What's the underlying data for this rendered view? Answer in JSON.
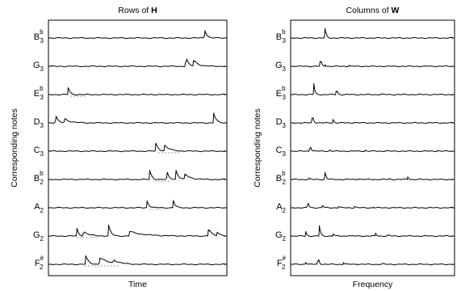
{
  "chart_data": [
    {
      "type": "line",
      "title_plain": "Rows of ",
      "title_bold": "H",
      "xlabel": "Time",
      "ylabel": "Corresponding notes",
      "rows": [
        {
          "note": "B",
          "sup": "b",
          "sub": "3",
          "dotted": [],
          "peaks": [
            {
              "x": 0.88,
              "h": 14,
              "w": 0.012
            }
          ]
        },
        {
          "note": "G",
          "sup": "",
          "sub": "3",
          "dotted": [],
          "peaks": [
            {
              "x": 0.775,
              "h": 14,
              "w": 0.012
            },
            {
              "x": 0.82,
              "h": 8,
              "w": 0.025
            }
          ]
        },
        {
          "note": "E",
          "sup": "b",
          "sub": "3",
          "dotted": [
            [
              0.12,
              0.2
            ]
          ],
          "peaks": [
            {
              "x": 0.1,
              "h": 13,
              "w": 0.01
            }
          ]
        },
        {
          "note": "D",
          "sup": "",
          "sub": "3",
          "dotted": [],
          "peaks": [
            {
              "x": 0.03,
              "h": 12,
              "w": 0.012
            },
            {
              "x": 0.08,
              "h": 6,
              "w": 0.03
            },
            {
              "x": 0.935,
              "h": 13,
              "w": 0.012
            }
          ]
        },
        {
          "note": "C",
          "sup": "",
          "sub": "3",
          "dotted": [
            [
              0.62,
              0.74
            ]
          ],
          "peaks": [
            {
              "x": 0.6,
              "h": 13,
              "w": 0.015
            },
            {
              "x": 0.65,
              "h": 8,
              "w": 0.03
            }
          ]
        },
        {
          "note": "B",
          "sup": "b",
          "sub": "2",
          "dotted": [
            [
              0.6,
              0.68
            ]
          ],
          "peaks": [
            {
              "x": 0.57,
              "h": 13,
              "w": 0.01
            },
            {
              "x": 0.665,
              "h": 12,
              "w": 0.012
            },
            {
              "x": 0.72,
              "h": 13,
              "w": 0.012
            },
            {
              "x": 0.77,
              "h": 7,
              "w": 0.03
            }
          ]
        },
        {
          "note": "A",
          "sup": "",
          "sub": "2",
          "dotted": [
            [
              0.57,
              0.66
            ]
          ],
          "peaks": [
            {
              "x": 0.55,
              "h": 12,
              "w": 0.012
            },
            {
              "x": 0.7,
              "h": 14,
              "w": 0.01
            }
          ]
        },
        {
          "note": "G",
          "sup": "",
          "sub": "2",
          "dotted": [
            [
              0.15,
              0.28
            ]
          ],
          "peaks": [
            {
              "x": 0.15,
              "h": 14,
              "w": 0.01
            },
            {
              "x": 0.19,
              "h": 6,
              "w": 0.03
            },
            {
              "x": 0.335,
              "h": 14,
              "w": 0.012
            },
            {
              "x": 0.45,
              "h": 6,
              "w": 0.08
            },
            {
              "x": 0.905,
              "h": 11,
              "w": 0.015
            },
            {
              "x": 0.95,
              "h": 6,
              "w": 0.02
            }
          ]
        },
        {
          "note": "F",
          "sup": "#",
          "sub": "2",
          "dotted": [
            [
              0.2,
              0.4
            ]
          ],
          "peaks": [
            {
              "x": 0.2,
              "h": 14,
              "w": 0.015
            },
            {
              "x": 0.28,
              "h": 9,
              "w": 0.05
            },
            {
              "x": 0.36,
              "h": 5,
              "w": 0.03
            }
          ]
        }
      ]
    },
    {
      "type": "line",
      "title_plain": "Columns of ",
      "title_bold": "W",
      "xlabel": "Frequency",
      "ylabel": "Corresponding notes",
      "rows": [
        {
          "note": "B",
          "sup": "b",
          "sub": "3",
          "dotted": [],
          "peaks": [
            {
              "x": 0.205,
              "h": 16,
              "w": 0.006
            }
          ]
        },
        {
          "note": "G",
          "sup": "",
          "sub": "3",
          "dotted": [],
          "peaks": [
            {
              "x": 0.175,
              "h": 14,
              "w": 0.006
            },
            {
              "x": 0.2,
              "h": 5,
              "w": 0.005
            },
            {
              "x": 0.35,
              "h": 3,
              "w": 0.005
            }
          ]
        },
        {
          "note": "E",
          "sup": "b",
          "sub": "3",
          "dotted": [],
          "peaks": [
            {
              "x": 0.135,
              "h": 14,
              "w": 0.006
            },
            {
              "x": 0.275,
              "h": 11,
              "w": 0.006
            },
            {
              "x": 0.55,
              "h": 2,
              "w": 0.005
            }
          ]
        },
        {
          "note": "D",
          "sup": "",
          "sub": "3",
          "dotted": [],
          "peaks": [
            {
              "x": 0.125,
              "h": 15,
              "w": 0.006
            },
            {
              "x": 0.255,
              "h": 6,
              "w": 0.005
            },
            {
              "x": 0.38,
              "h": 2,
              "w": 0.005
            }
          ]
        },
        {
          "note": "C",
          "sup": "",
          "sub": "3",
          "dotted": [],
          "peaks": [
            {
              "x": 0.11,
              "h": 13,
              "w": 0.006
            },
            {
              "x": 0.23,
              "h": 4,
              "w": 0.005
            },
            {
              "x": 0.45,
              "h": 3,
              "w": 0.005
            },
            {
              "x": 0.58,
              "h": 2,
              "w": 0.005
            },
            {
              "x": 0.9,
              "h": 3,
              "w": 0.005
            }
          ]
        },
        {
          "note": "B",
          "sup": "b",
          "sub": "2",
          "dotted": [],
          "peaks": [
            {
              "x": 0.1,
              "h": 4,
              "w": 0.005
            },
            {
              "x": 0.205,
              "h": 12,
              "w": 0.006
            },
            {
              "x": 0.41,
              "h": 3,
              "w": 0.005
            },
            {
              "x": 0.6,
              "h": 2,
              "w": 0.005
            },
            {
              "x": 0.72,
              "h": 4,
              "w": 0.005
            }
          ]
        },
        {
          "note": "A",
          "sup": "",
          "sub": "2",
          "dotted": [],
          "peaks": [
            {
              "x": 0.095,
              "h": 13,
              "w": 0.006
            },
            {
              "x": 0.19,
              "h": 5,
              "w": 0.005
            },
            {
              "x": 0.29,
              "h": 3,
              "w": 0.005
            },
            {
              "x": 0.39,
              "h": 3,
              "w": 0.005
            },
            {
              "x": 0.5,
              "h": 2,
              "w": 0.005
            }
          ]
        },
        {
          "note": "G",
          "sup": "",
          "sub": "2",
          "dotted": [],
          "peaks": [
            {
              "x": 0.085,
              "h": 6,
              "w": 0.006
            },
            {
              "x": 0.17,
              "h": 15,
              "w": 0.006
            },
            {
              "x": 0.255,
              "h": 4,
              "w": 0.005
            },
            {
              "x": 0.345,
              "h": 3,
              "w": 0.005
            },
            {
              "x": 0.52,
              "h": 4,
              "w": 0.005
            },
            {
              "x": 0.595,
              "h": 3,
              "w": 0.005
            }
          ]
        },
        {
          "note": "F",
          "sup": "#",
          "sub": "2",
          "dotted": [],
          "peaks": [
            {
              "x": 0.08,
              "h": 6,
              "w": 0.006
            },
            {
              "x": 0.16,
              "h": 14,
              "w": 0.006
            },
            {
              "x": 0.32,
              "h": 3,
              "w": 0.005
            },
            {
              "x": 0.4,
              "h": 2,
              "w": 0.005
            },
            {
              "x": 0.56,
              "h": 2,
              "w": 0.005
            }
          ]
        }
      ]
    }
  ]
}
